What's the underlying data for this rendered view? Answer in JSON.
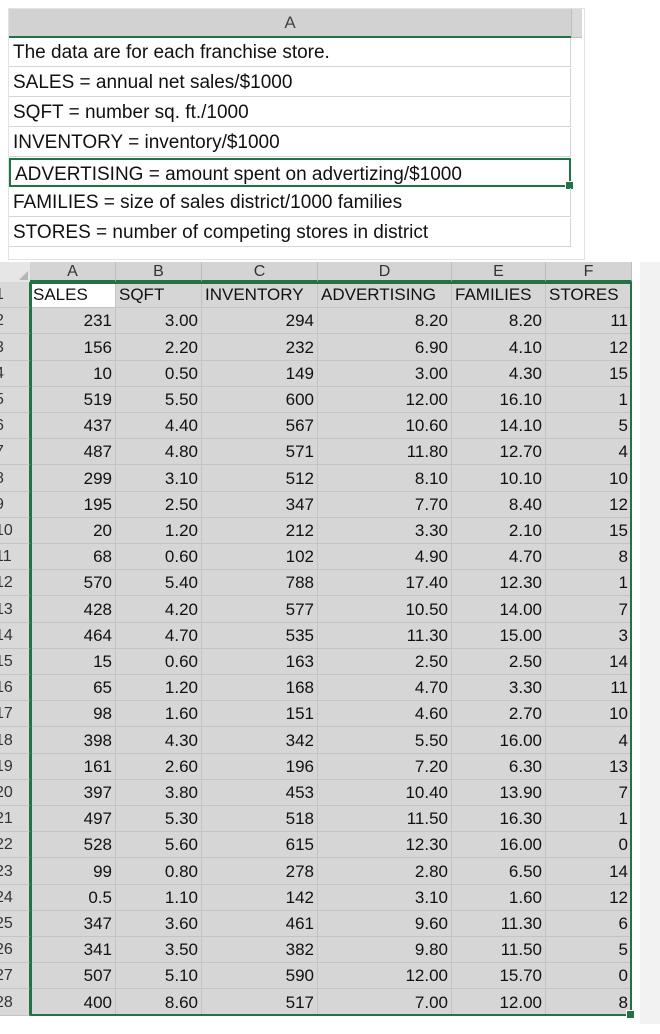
{
  "notes": {
    "column_letter": "A",
    "lines": [
      "The data are for each franchise store.",
      "SALES = annual net sales/$1000",
      "SQFT = number sq. ft./1000",
      "INVENTORY = inventory/$1000",
      "ADVERTISING = amount spent on advertizing/$1000",
      "FAMILIES = size of sales district/1000 families",
      "STORES = number of competing stores in district"
    ],
    "selected_index": 4
  },
  "sheet": {
    "column_letters": [
      "A",
      "B",
      "C",
      "D",
      "E",
      "F"
    ],
    "row_numbers": [
      "1",
      "2",
      "3",
      "4",
      "5",
      "6",
      "7",
      "8",
      "9",
      "10",
      "11",
      "12",
      "13",
      "14",
      "15",
      "16",
      "17",
      "18",
      "19",
      "20",
      "21",
      "22",
      "23",
      "24",
      "25",
      "26",
      "27",
      "28"
    ],
    "headers": [
      "SALES",
      "SQFT",
      "INVENTORY",
      "ADVERTISING",
      "FAMILIES",
      "STORES"
    ],
    "rows": [
      [
        "231",
        "3.00",
        "294",
        "8.20",
        "8.20",
        "11"
      ],
      [
        "156",
        "2.20",
        "232",
        "6.90",
        "4.10",
        "12"
      ],
      [
        "10",
        "0.50",
        "149",
        "3.00",
        "4.30",
        "15"
      ],
      [
        "519",
        "5.50",
        "600",
        "12.00",
        "16.10",
        "1"
      ],
      [
        "437",
        "4.40",
        "567",
        "10.60",
        "14.10",
        "5"
      ],
      [
        "487",
        "4.80",
        "571",
        "11.80",
        "12.70",
        "4"
      ],
      [
        "299",
        "3.10",
        "512",
        "8.10",
        "10.10",
        "10"
      ],
      [
        "195",
        "2.50",
        "347",
        "7.70",
        "8.40",
        "12"
      ],
      [
        "20",
        "1.20",
        "212",
        "3.30",
        "2.10",
        "15"
      ],
      [
        "68",
        "0.60",
        "102",
        "4.90",
        "4.70",
        "8"
      ],
      [
        "570",
        "5.40",
        "788",
        "17.40",
        "12.30",
        "1"
      ],
      [
        "428",
        "4.20",
        "577",
        "10.50",
        "14.00",
        "7"
      ],
      [
        "464",
        "4.70",
        "535",
        "11.30",
        "15.00",
        "3"
      ],
      [
        "15",
        "0.60",
        "163",
        "2.50",
        "2.50",
        "14"
      ],
      [
        "65",
        "1.20",
        "168",
        "4.70",
        "3.30",
        "11"
      ],
      [
        "98",
        "1.60",
        "151",
        "4.60",
        "2.70",
        "10"
      ],
      [
        "398",
        "4.30",
        "342",
        "5.50",
        "16.00",
        "4"
      ],
      [
        "161",
        "2.60",
        "196",
        "7.20",
        "6.30",
        "13"
      ],
      [
        "397",
        "3.80",
        "453",
        "10.40",
        "13.90",
        "7"
      ],
      [
        "497",
        "5.30",
        "518",
        "11.50",
        "16.30",
        "1"
      ],
      [
        "528",
        "5.60",
        "615",
        "12.30",
        "16.00",
        "0"
      ],
      [
        "99",
        "0.80",
        "278",
        "2.80",
        "6.50",
        "14"
      ],
      [
        "0.5",
        "1.10",
        "142",
        "3.10",
        "1.60",
        "12"
      ],
      [
        "347",
        "3.60",
        "461",
        "9.60",
        "11.30",
        "6"
      ],
      [
        "341",
        "3.50",
        "382",
        "9.80",
        "11.50",
        "5"
      ],
      [
        "507",
        "5.10",
        "590",
        "12.00",
        "15.70",
        "0"
      ],
      [
        "400",
        "8.60",
        "517",
        "7.00",
        "12.00",
        "8"
      ]
    ]
  },
  "colors": {
    "selection": "#217346",
    "selected_cell_fill": "#d6d6d6",
    "header_fill": "#d4d4d4"
  }
}
